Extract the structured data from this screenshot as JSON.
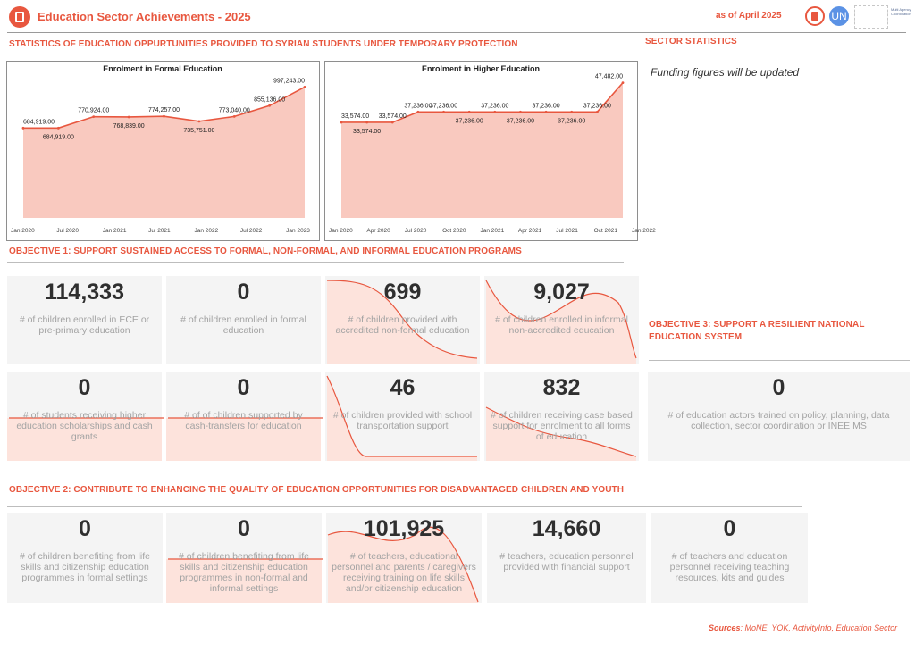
{
  "header": {
    "title": "Education Sector Achievements - 2025",
    "date": "as of April 2025",
    "logo_un_label": "UN",
    "logo_partner_text": "Multi Agency Coordination"
  },
  "sections": {
    "statistics": "STATISTICS OF EDUCATION OPPURTUNITIES PROVIDED TO SYRIAN STUDENTS UNDER TEMPORARY PROTECTION",
    "sector_stats": "SECTOR STATISTICS",
    "funding_note": "Funding figures will be updated",
    "objective1": "OBJECTIVE 1:   SUPPORT SUSTAINED ACCESS TO FORMAL, NON-FORMAL, AND INFORMAL EDUCATION PROGRAMS",
    "objective2": "OBJECTIVE 2: CONTRIBUTE TO ENHANCING THE QUALITY OF EDUCATION OPPORTUNITIES FOR DISADVANTAGED CHILDREN AND YOUTH",
    "objective3": "OBJECTIVE 3: SUPPORT A RESILIENT NATIONAL EDUCATION SYSTEM"
  },
  "chart_data": [
    {
      "type": "area",
      "title": "Enrolment in Formal Education",
      "x_ticks": [
        "Jan 2020",
        "Jul 2020",
        "Jan 2021",
        "Jul 2021",
        "Jan 2022",
        "Jul 2022",
        "Jan 2023"
      ],
      "points": [
        {
          "x": 0,
          "value": 684919,
          "label": "684,919.00"
        },
        {
          "x": 1,
          "value": 684919,
          "label": "684,919.00"
        },
        {
          "x": 2,
          "value": 770924,
          "label": "770,924.00"
        },
        {
          "x": 3,
          "value": 768839,
          "label": "768,839.00"
        },
        {
          "x": 4,
          "value": 774257,
          "label": "774,257.00"
        },
        {
          "x": 5,
          "value": 735751,
          "label": "735,751.00"
        },
        {
          "x": 6,
          "value": 773040,
          "label": "773,040.00"
        },
        {
          "x": 7,
          "value": 855136,
          "label": "855,136.00"
        },
        {
          "x": 8,
          "value": 997243,
          "label": "997,243.00"
        }
      ],
      "color": "#e8573f",
      "fill": "#f9c9bf"
    },
    {
      "type": "area",
      "title": "Enrolment in Higher Education",
      "x_ticks": [
        "Jan 2020",
        "Apr 2020",
        "Jul 2020",
        "Oct 2020",
        "Jan 2021",
        "Apr 2021",
        "Jul 2021",
        "Oct 2021",
        "Jan 2022"
      ],
      "points": [
        {
          "x": 0,
          "value": 33574,
          "label": "33,574.00"
        },
        {
          "x": 1,
          "value": 33574,
          "label": "33,574.00"
        },
        {
          "x": 2,
          "value": 33574,
          "label": "33,574.00"
        },
        {
          "x": 3,
          "value": 37236,
          "label": "37,236.00"
        },
        {
          "x": 4,
          "value": 37236,
          "label": "37,236.00"
        },
        {
          "x": 5,
          "value": 37236,
          "label": "37,236.00"
        },
        {
          "x": 6,
          "value": 37236,
          "label": "37,236.00"
        },
        {
          "x": 7,
          "value": 37236,
          "label": "37,236.00"
        },
        {
          "x": 8,
          "value": 37236,
          "label": "37,236.00"
        },
        {
          "x": 9,
          "value": 37236,
          "label": "37,236.00"
        },
        {
          "x": 10,
          "value": 37236,
          "label": "37,236.00"
        },
        {
          "x": 11,
          "value": 47482,
          "label": "47,482.00"
        }
      ],
      "color": "#e8573f",
      "fill": "#f9c9bf"
    }
  ],
  "objective1_cards": [
    {
      "value": "114,333",
      "label": "# of children enrolled in ECE or pre-primary education"
    },
    {
      "value": "0",
      "label": "# of children enrolled in formal education"
    },
    {
      "value": "699",
      "label": "# of children provided with accredited non-formal education"
    },
    {
      "value": "9,027",
      "label": "# of children enrolled in informal non-accredited education"
    },
    {
      "value": "0",
      "label": "# of students receiving higher education scholarships and cash grants"
    },
    {
      "value": "0",
      "label": "# of of children supported by cash-transfers for education"
    },
    {
      "value": "46",
      "label": "# of children provided with school transportation support"
    },
    {
      "value": "832",
      "label": "# of children receiving case based support for enrolment to all forms of education"
    }
  ],
  "objective3_cards": [
    {
      "value": "0",
      "label": "# of education actors trained on policy, planning, data collection, sector coordination or INEE MS"
    }
  ],
  "objective2_cards": [
    {
      "value": "0",
      "label": "# of children benefiting from life skills and citizenship education programmes in formal settings"
    },
    {
      "value": "0",
      "label": "# of children benefiting from life skills and citizenship education programmes in non-formal and informal settings"
    },
    {
      "value": "101,925",
      "label": "# of teachers, educational personnel and parents / caregivers receiving training on life skills and/or citizenship education"
    },
    {
      "value": "14,660",
      "label": "# teachers, education personnel provided with financial support"
    },
    {
      "value": "0",
      "label": "# of teachers and education personnel receiving teaching resources, kits and guides"
    }
  ],
  "footer": {
    "sources_label": "Sources",
    "sources_text": ": MoNE, YOK, ActivityInfo, Education Sector"
  }
}
